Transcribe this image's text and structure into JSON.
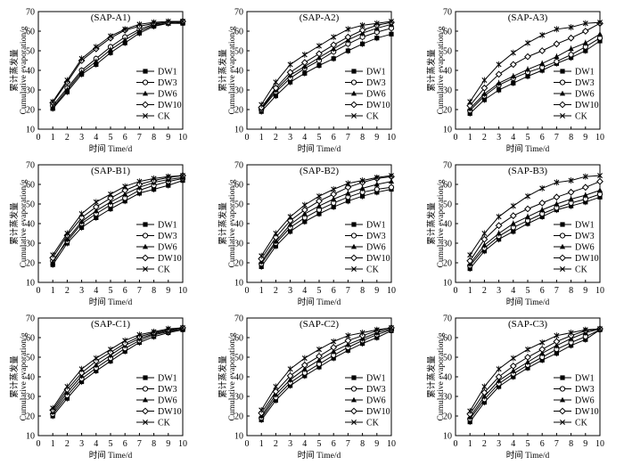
{
  "figure": {
    "xlabel": "时间 Time/d",
    "ylabel_cn": "累计蒸发量",
    "ylabel_en": "Cumulative evaporation/g"
  },
  "chart_data": [
    {
      "type": "line",
      "title": "(SAP-A1)",
      "xlabel": "时间 Time/d",
      "ylabel": "Cumulative evaporation/g",
      "xlim": [
        0,
        10
      ],
      "ylim": [
        10,
        70
      ],
      "x": [
        1,
        2,
        3,
        4,
        5,
        6,
        7,
        8,
        9,
        10
      ],
      "legend_position": "right",
      "series": [
        {
          "name": "DW1",
          "marker": "square-filled",
          "values": [
            20.5,
            29,
            38,
            43,
            49,
            54,
            59,
            62.5,
            64,
            64
          ]
        },
        {
          "name": "DW3",
          "marker": "circle-open",
          "values": [
            22,
            31,
            40,
            46,
            52,
            57,
            61,
            63.5,
            64.5,
            65
          ]
        },
        {
          "name": "DW6",
          "marker": "triangle-filled",
          "values": [
            21,
            30,
            39,
            44.5,
            50.5,
            55.5,
            60,
            63,
            64,
            64.5
          ]
        },
        {
          "name": "DW10",
          "marker": "diamond-open",
          "values": [
            23.5,
            34,
            45,
            51,
            56.5,
            60.5,
            62.5,
            64,
            64.5,
            65
          ]
        },
        {
          "name": "CK",
          "marker": "x",
          "values": [
            24,
            35,
            46,
            52,
            57.5,
            61,
            63.5,
            64.5,
            65,
            65
          ]
        }
      ]
    },
    {
      "type": "line",
      "title": "(SAP-A2)",
      "xlabel": "时间 Time/d",
      "ylabel": "Cumulative evaporation/g",
      "xlim": [
        0,
        10
      ],
      "ylim": [
        10,
        70
      ],
      "x": [
        1,
        2,
        3,
        4,
        5,
        6,
        7,
        8,
        9,
        10
      ],
      "legend_position": "right",
      "series": [
        {
          "name": "DW1",
          "marker": "square-filled",
          "values": [
            19,
            27,
            34,
            38.5,
            42.5,
            46,
            50,
            53.5,
            56.5,
            58.5
          ]
        },
        {
          "name": "DW3",
          "marker": "circle-open",
          "values": [
            20,
            29,
            36,
            41,
            45,
            49.5,
            53.5,
            57,
            59.5,
            61.5
          ]
        },
        {
          "name": "DW6",
          "marker": "triangle-filled",
          "values": [
            20.5,
            30,
            37.5,
            42,
            46.5,
            51,
            55.5,
            59,
            61.5,
            63.5
          ]
        },
        {
          "name": "DW10",
          "marker": "diamond-open",
          "values": [
            21,
            31,
            39,
            44,
            48.5,
            53,
            57,
            60.5,
            63,
            64.5
          ]
        },
        {
          "name": "CK",
          "marker": "x",
          "values": [
            22.5,
            34,
            43,
            48,
            52.5,
            57,
            61,
            63,
            64,
            65
          ]
        }
      ]
    },
    {
      "type": "line",
      "title": "(SAP-A3)",
      "xlabel": "时间 Time/d",
      "ylabel": "Cumulative evaporation/g",
      "xlim": [
        0,
        10
      ],
      "ylim": [
        10,
        70
      ],
      "x": [
        1,
        2,
        3,
        4,
        5,
        6,
        7,
        8,
        9,
        10
      ],
      "legend_position": "right",
      "series": [
        {
          "name": "DW1",
          "marker": "square-filled",
          "values": [
            18,
            25,
            30,
            33.5,
            37,
            40,
            43.5,
            46.5,
            50,
            55
          ]
        },
        {
          "name": "DW3",
          "marker": "circle-open",
          "values": [
            19.5,
            27,
            32.5,
            36,
            39,
            41.5,
            44.5,
            48,
            52,
            56.5
          ]
        },
        {
          "name": "DW6",
          "marker": "triangle-filled",
          "values": [
            20.5,
            28,
            33.5,
            37,
            40.5,
            43.5,
            47,
            51,
            54,
            58.5
          ]
        },
        {
          "name": "DW10",
          "marker": "diamond-open",
          "values": [
            22,
            31,
            38,
            43,
            47,
            50,
            53.5,
            56.5,
            60,
            64
          ]
        },
        {
          "name": "CK",
          "marker": "x",
          "values": [
            24,
            35,
            43,
            49,
            54,
            58,
            61,
            62,
            64,
            64.5
          ]
        }
      ]
    },
    {
      "type": "line",
      "title": "(SAP-B1)",
      "xlabel": "时间 Time/d",
      "ylabel": "Cumulative evaporation/g",
      "xlim": [
        0,
        10
      ],
      "ylim": [
        10,
        70
      ],
      "x": [
        1,
        2,
        3,
        4,
        5,
        6,
        7,
        8,
        9,
        10
      ],
      "legend_position": "right",
      "series": [
        {
          "name": "DW1",
          "marker": "square-filled",
          "values": [
            19,
            30,
            38,
            43,
            47.5,
            51.5,
            55.5,
            57.5,
            59.5,
            62
          ]
        },
        {
          "name": "DW3",
          "marker": "circle-open",
          "values": [
            21,
            31,
            40,
            45,
            49.5,
            53,
            57,
            59.5,
            61.5,
            63
          ]
        },
        {
          "name": "DW6",
          "marker": "triangle-filled",
          "values": [
            20,
            32,
            41,
            46.5,
            51,
            55,
            58.5,
            61,
            62.5,
            63.5
          ]
        },
        {
          "name": "DW10",
          "marker": "diamond-open",
          "values": [
            22.5,
            34,
            43,
            48.5,
            53,
            57,
            60,
            62,
            63.5,
            64.5
          ]
        },
        {
          "name": "CK",
          "marker": "x",
          "values": [
            24,
            35,
            45,
            51,
            55,
            59,
            61.5,
            63,
            64,
            64.5
          ]
        }
      ]
    },
    {
      "type": "line",
      "title": "(SAP-B2)",
      "xlabel": "时间 Time/d",
      "ylabel": "Cumulative evaporation/g",
      "xlim": [
        0,
        10
      ],
      "ylim": [
        10,
        70
      ],
      "x": [
        1,
        2,
        3,
        4,
        5,
        6,
        7,
        8,
        9,
        10
      ],
      "legend_position": "right",
      "series": [
        {
          "name": "DW1",
          "marker": "square-filled",
          "values": [
            18,
            28.5,
            36,
            41,
            45,
            48.5,
            51.5,
            54,
            56,
            57.5
          ]
        },
        {
          "name": "DW3",
          "marker": "circle-open",
          "values": [
            19.5,
            30,
            38,
            43,
            47,
            50.5,
            53.5,
            56,
            57.5,
            58.5
          ]
        },
        {
          "name": "DW6",
          "marker": "triangle-filled",
          "values": [
            20.5,
            31,
            39.5,
            45,
            49,
            52.5,
            55.5,
            58,
            60,
            61.5
          ]
        },
        {
          "name": "DW10",
          "marker": "diamond-open",
          "values": [
            22,
            33,
            41.5,
            47,
            51.5,
            55,
            58.5,
            61,
            63,
            64
          ]
        },
        {
          "name": "CK",
          "marker": "x",
          "values": [
            23.5,
            35,
            43.5,
            49.5,
            54,
            57.5,
            60.5,
            62,
            63.5,
            64.5
          ]
        }
      ]
    },
    {
      "type": "line",
      "title": "(SAP-B3)",
      "xlabel": "时间 Time/d",
      "ylabel": "Cumulative evaporation/g",
      "xlim": [
        0,
        10
      ],
      "ylim": [
        10,
        70
      ],
      "x": [
        1,
        2,
        3,
        4,
        5,
        6,
        7,
        8,
        9,
        10
      ],
      "legend_position": "right",
      "series": [
        {
          "name": "DW1",
          "marker": "square-filled",
          "values": [
            17,
            26,
            32,
            36,
            40,
            43.5,
            47,
            49,
            51,
            53.5
          ]
        },
        {
          "name": "DW3",
          "marker": "circle-open",
          "values": [
            18.5,
            27.5,
            33.5,
            38,
            41.5,
            45,
            48,
            50.5,
            52.5,
            55
          ]
        },
        {
          "name": "DW6",
          "marker": "triangle-filled",
          "values": [
            19.5,
            29,
            35,
            40,
            43.5,
            47,
            50,
            52.5,
            54.5,
            57
          ]
        },
        {
          "name": "DW10",
          "marker": "diamond-open",
          "values": [
            21,
            32,
            39,
            44,
            47.5,
            50.5,
            53.5,
            56,
            58.5,
            61.5
          ]
        },
        {
          "name": "CK",
          "marker": "x",
          "values": [
            24,
            35,
            43.5,
            49,
            54,
            58,
            61,
            62,
            64,
            64.5
          ]
        }
      ]
    },
    {
      "type": "line",
      "title": "(SAP-C1)",
      "xlabel": "时间 Time/d",
      "ylabel": "Cumulative evaporation/g",
      "xlim": [
        0,
        10
      ],
      "ylim": [
        10,
        70
      ],
      "x": [
        1,
        2,
        3,
        4,
        5,
        6,
        7,
        8,
        9,
        10
      ],
      "legend_position": "right",
      "series": [
        {
          "name": "DW1",
          "marker": "square-filled",
          "values": [
            20,
            29,
            37.5,
            43,
            48,
            53,
            57.5,
            60.5,
            62.5,
            64
          ]
        },
        {
          "name": "DW3",
          "marker": "circle-open",
          "values": [
            21,
            30.5,
            39,
            44.5,
            49.5,
            54.5,
            58.5,
            61.5,
            63,
            64.5
          ]
        },
        {
          "name": "DW6",
          "marker": "triangle-filled",
          "values": [
            22,
            32,
            40.5,
            46,
            51,
            56,
            59.5,
            62,
            63.5,
            64.5
          ]
        },
        {
          "name": "DW10",
          "marker": "diamond-open",
          "values": [
            23,
            33.5,
            42,
            48,
            52.5,
            57,
            60.5,
            62.5,
            64,
            65
          ]
        },
        {
          "name": "CK",
          "marker": "x",
          "values": [
            24,
            35,
            44,
            49.5,
            54,
            58.5,
            61.5,
            63,
            64.5,
            65
          ]
        }
      ]
    },
    {
      "type": "line",
      "title": "(SAP-C2)",
      "xlabel": "时间 Time/d",
      "ylabel": "Cumulative evaporation/g",
      "xlim": [
        0,
        10
      ],
      "ylim": [
        10,
        70
      ],
      "x": [
        1,
        2,
        3,
        4,
        5,
        6,
        7,
        8,
        9,
        10
      ],
      "legend_position": "right",
      "series": [
        {
          "name": "DW1",
          "marker": "square-filled",
          "values": [
            18,
            28,
            35.5,
            40.5,
            45,
            49.5,
            53.5,
            57,
            60,
            63.5
          ]
        },
        {
          "name": "DW3",
          "marker": "circle-open",
          "values": [
            19,
            29.5,
            37,
            42,
            46.5,
            51,
            55,
            58.5,
            61.5,
            64
          ]
        },
        {
          "name": "DW6",
          "marker": "triangle-filled",
          "values": [
            20,
            31,
            38.5,
            44,
            48.5,
            53,
            56.5,
            59.5,
            62.5,
            64.5
          ]
        },
        {
          "name": "DW10",
          "marker": "diamond-open",
          "values": [
            21.5,
            32.5,
            40.5,
            46,
            50.5,
            55,
            58.5,
            61,
            63.5,
            65
          ]
        },
        {
          "name": "CK",
          "marker": "x",
          "values": [
            23,
            35,
            44,
            49.5,
            54,
            58,
            61,
            62.5,
            64,
            65
          ]
        }
      ]
    },
    {
      "type": "line",
      "title": "(SAP-C3)",
      "xlabel": "时间 Time/d",
      "ylabel": "Cumulative evaporation/g",
      "xlim": [
        0,
        10
      ],
      "ylim": [
        10,
        70
      ],
      "x": [
        1,
        2,
        3,
        4,
        5,
        6,
        7,
        8,
        9,
        10
      ],
      "legend_position": "right",
      "series": [
        {
          "name": "DW1",
          "marker": "square-filled",
          "values": [
            17,
            27,
            35,
            40,
            44.5,
            48.5,
            52,
            56,
            59,
            64
          ]
        },
        {
          "name": "DW3",
          "marker": "circle-open",
          "values": [
            18.5,
            28.5,
            36.5,
            41.5,
            46,
            50,
            54,
            57.5,
            60.5,
            64
          ]
        },
        {
          "name": "DW6",
          "marker": "triangle-filled",
          "values": [
            19.5,
            30,
            38,
            43,
            47.5,
            52,
            56,
            59.5,
            62.5,
            64.5
          ]
        },
        {
          "name": "DW10",
          "marker": "diamond-open",
          "values": [
            21,
            32,
            40,
            45.5,
            50,
            54,
            58,
            61,
            63.5,
            64.5
          ]
        },
        {
          "name": "CK",
          "marker": "x",
          "values": [
            22.5,
            35,
            44,
            49.5,
            54,
            57.5,
            61,
            62.5,
            64,
            64.5
          ]
        }
      ]
    }
  ]
}
